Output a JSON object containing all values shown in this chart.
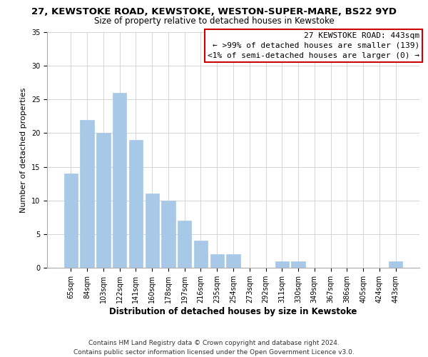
{
  "title": "27, KEWSTOKE ROAD, KEWSTOKE, WESTON-SUPER-MARE, BS22 9YD",
  "subtitle": "Size of property relative to detached houses in Kewstoke",
  "xlabel": "Distribution of detached houses by size in Kewstoke",
  "ylabel": "Number of detached properties",
  "bar_labels": [
    "65sqm",
    "84sqm",
    "103sqm",
    "122sqm",
    "141sqm",
    "160sqm",
    "178sqm",
    "197sqm",
    "216sqm",
    "235sqm",
    "254sqm",
    "273sqm",
    "292sqm",
    "311sqm",
    "330sqm",
    "349sqm",
    "367sqm",
    "386sqm",
    "405sqm",
    "424sqm",
    "443sqm"
  ],
  "bar_values": [
    14,
    22,
    20,
    26,
    19,
    11,
    10,
    7,
    4,
    2,
    2,
    0,
    0,
    1,
    1,
    0,
    0,
    0,
    0,
    0,
    1
  ],
  "bar_color": "#a8c8e8",
  "bar_edge_color": "#a8c8e8",
  "ylim": [
    0,
    35
  ],
  "yticks": [
    0,
    5,
    10,
    15,
    20,
    25,
    30,
    35
  ],
  "annotation_line1": "27 KEWSTOKE ROAD: 443sqm",
  "annotation_line2": "← >99% of detached houses are smaller (139)",
  "annotation_line3": "<1% of semi-detached houses are larger (0) →",
  "annotation_box_facecolor": "#ffffff",
  "annotation_box_edgecolor": "#cc0000",
  "footer_line1": "Contains HM Land Registry data © Crown copyright and database right 2024.",
  "footer_line2": "Contains public sector information licensed under the Open Government Licence v3.0.",
  "grid_color": "#d0d0d0",
  "background_color": "#ffffff",
  "title_fontsize": 9.5,
  "subtitle_fontsize": 8.5,
  "xlabel_fontsize": 8.5,
  "ylabel_fontsize": 8,
  "tick_fontsize": 7,
  "footer_fontsize": 6.5,
  "annotation_fontsize": 8
}
